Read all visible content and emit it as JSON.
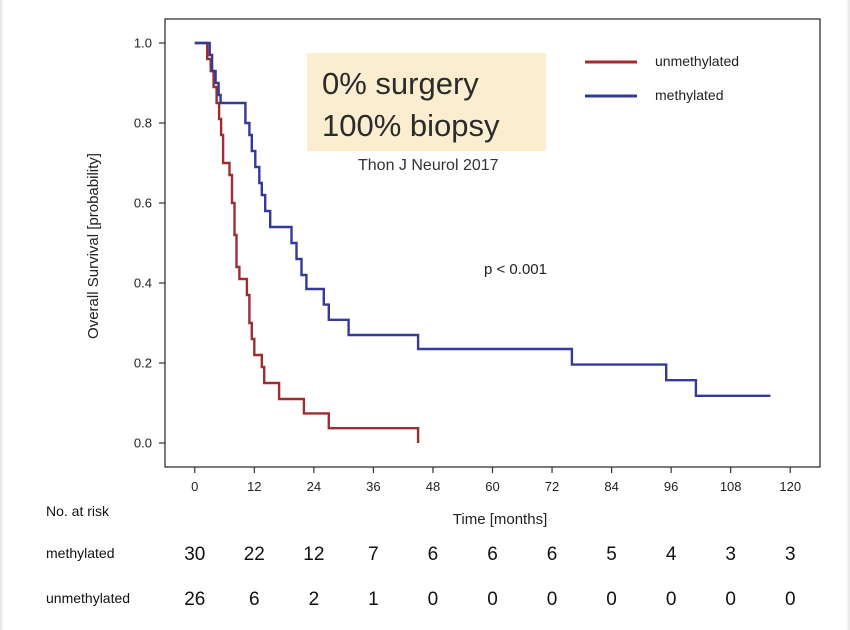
{
  "chart_data": {
    "type": "line",
    "step": true,
    "xlabel": "Time [months]",
    "ylabel": "Overall Survival [probability]",
    "xlim": [
      -6,
      126
    ],
    "ylim": [
      -0.06,
      1.06
    ],
    "x_ticks": [
      0,
      12,
      24,
      36,
      48,
      60,
      72,
      84,
      96,
      108,
      120
    ],
    "y_ticks": [
      "0.0",
      "0.2",
      "0.4",
      "0.6",
      "0.8",
      "1.0"
    ],
    "y_tick_values": [
      0,
      0.2,
      0.4,
      0.6,
      0.8,
      1.0
    ],
    "grid": false,
    "legend_position": "top-right",
    "series": [
      {
        "name": "unmethylated",
        "color": "#9b2d33",
        "points": [
          [
            0,
            1.0
          ],
          [
            2.5,
            1.0
          ],
          [
            2.5,
            0.96
          ],
          [
            3.2,
            0.96
          ],
          [
            3.2,
            0.93
          ],
          [
            3.8,
            0.93
          ],
          [
            3.8,
            0.89
          ],
          [
            4.4,
            0.89
          ],
          [
            4.4,
            0.85
          ],
          [
            4.9,
            0.85
          ],
          [
            4.9,
            0.81
          ],
          [
            5.3,
            0.81
          ],
          [
            5.3,
            0.77
          ],
          [
            5.7,
            0.77
          ],
          [
            5.7,
            0.7
          ],
          [
            7.0,
            0.7
          ],
          [
            7.0,
            0.67
          ],
          [
            7.5,
            0.67
          ],
          [
            7.5,
            0.6
          ],
          [
            8.0,
            0.6
          ],
          [
            8.0,
            0.52
          ],
          [
            8.4,
            0.52
          ],
          [
            8.4,
            0.44
          ],
          [
            9.0,
            0.44
          ],
          [
            9.0,
            0.41
          ],
          [
            10.5,
            0.41
          ],
          [
            10.5,
            0.37
          ],
          [
            11.0,
            0.37
          ],
          [
            11.0,
            0.3
          ],
          [
            11.5,
            0.3
          ],
          [
            11.5,
            0.26
          ],
          [
            12.0,
            0.26
          ],
          [
            12.0,
            0.22
          ],
          [
            13.5,
            0.22
          ],
          [
            13.5,
            0.19
          ],
          [
            14.0,
            0.19
          ],
          [
            14.0,
            0.15
          ],
          [
            17.0,
            0.15
          ],
          [
            17.0,
            0.11
          ],
          [
            22.0,
            0.11
          ],
          [
            22.0,
            0.074
          ],
          [
            27.0,
            0.074
          ],
          [
            27.0,
            0.037
          ],
          [
            45.0,
            0.037
          ],
          [
            45.0,
            0.0
          ]
        ]
      },
      {
        "name": "methylated",
        "color": "#343a9a",
        "points": [
          [
            0,
            1.0
          ],
          [
            3.0,
            1.0
          ],
          [
            3.0,
            0.97
          ],
          [
            3.5,
            0.97
          ],
          [
            3.5,
            0.93
          ],
          [
            4.2,
            0.93
          ],
          [
            4.2,
            0.9
          ],
          [
            4.8,
            0.9
          ],
          [
            4.8,
            0.87
          ],
          [
            5.2,
            0.87
          ],
          [
            5.2,
            0.85
          ],
          [
            10.2,
            0.85
          ],
          [
            10.2,
            0.8
          ],
          [
            11.0,
            0.8
          ],
          [
            11.0,
            0.77
          ],
          [
            11.5,
            0.77
          ],
          [
            11.5,
            0.73
          ],
          [
            12.2,
            0.73
          ],
          [
            12.2,
            0.69
          ],
          [
            13.0,
            0.69
          ],
          [
            13.0,
            0.65
          ],
          [
            13.5,
            0.65
          ],
          [
            13.5,
            0.62
          ],
          [
            14.2,
            0.62
          ],
          [
            14.2,
            0.58
          ],
          [
            15.2,
            0.58
          ],
          [
            15.2,
            0.54
          ],
          [
            19.5,
            0.54
          ],
          [
            19.5,
            0.5
          ],
          [
            20.5,
            0.5
          ],
          [
            20.5,
            0.46
          ],
          [
            21.5,
            0.46
          ],
          [
            21.5,
            0.42
          ],
          [
            22.5,
            0.42
          ],
          [
            22.5,
            0.385
          ],
          [
            26.0,
            0.385
          ],
          [
            26.0,
            0.346
          ],
          [
            27.0,
            0.346
          ],
          [
            27.0,
            0.308
          ],
          [
            31.0,
            0.308
          ],
          [
            31.0,
            0.27
          ],
          [
            45.0,
            0.27
          ],
          [
            45.0,
            0.235
          ],
          [
            76.0,
            0.235
          ],
          [
            76.0,
            0.196
          ],
          [
            95.0,
            0.196
          ],
          [
            95.0,
            0.157
          ],
          [
            101.0,
            0.157
          ],
          [
            101.0,
            0.118
          ],
          [
            116.0,
            0.118
          ]
        ]
      }
    ],
    "annotations": {
      "p_value": "p < 0.001",
      "box_line1": "0% surgery",
      "box_line2": "100% biopsy",
      "citation": "Thon J Neurol 2017"
    },
    "risk_table": {
      "header": "No. at risk",
      "rows": [
        {
          "label": "methylated",
          "values": [
            "30",
            "22",
            "12",
            "7",
            "6",
            "6",
            "6",
            "5",
            "4",
            "3",
            "3"
          ]
        },
        {
          "label": "unmethylated",
          "values": [
            "26",
            "6",
            "2",
            "1",
            "0",
            "0",
            "0",
            "0",
            "0",
            "0",
            "0"
          ]
        }
      ]
    },
    "box_color": "#fbeed0"
  }
}
